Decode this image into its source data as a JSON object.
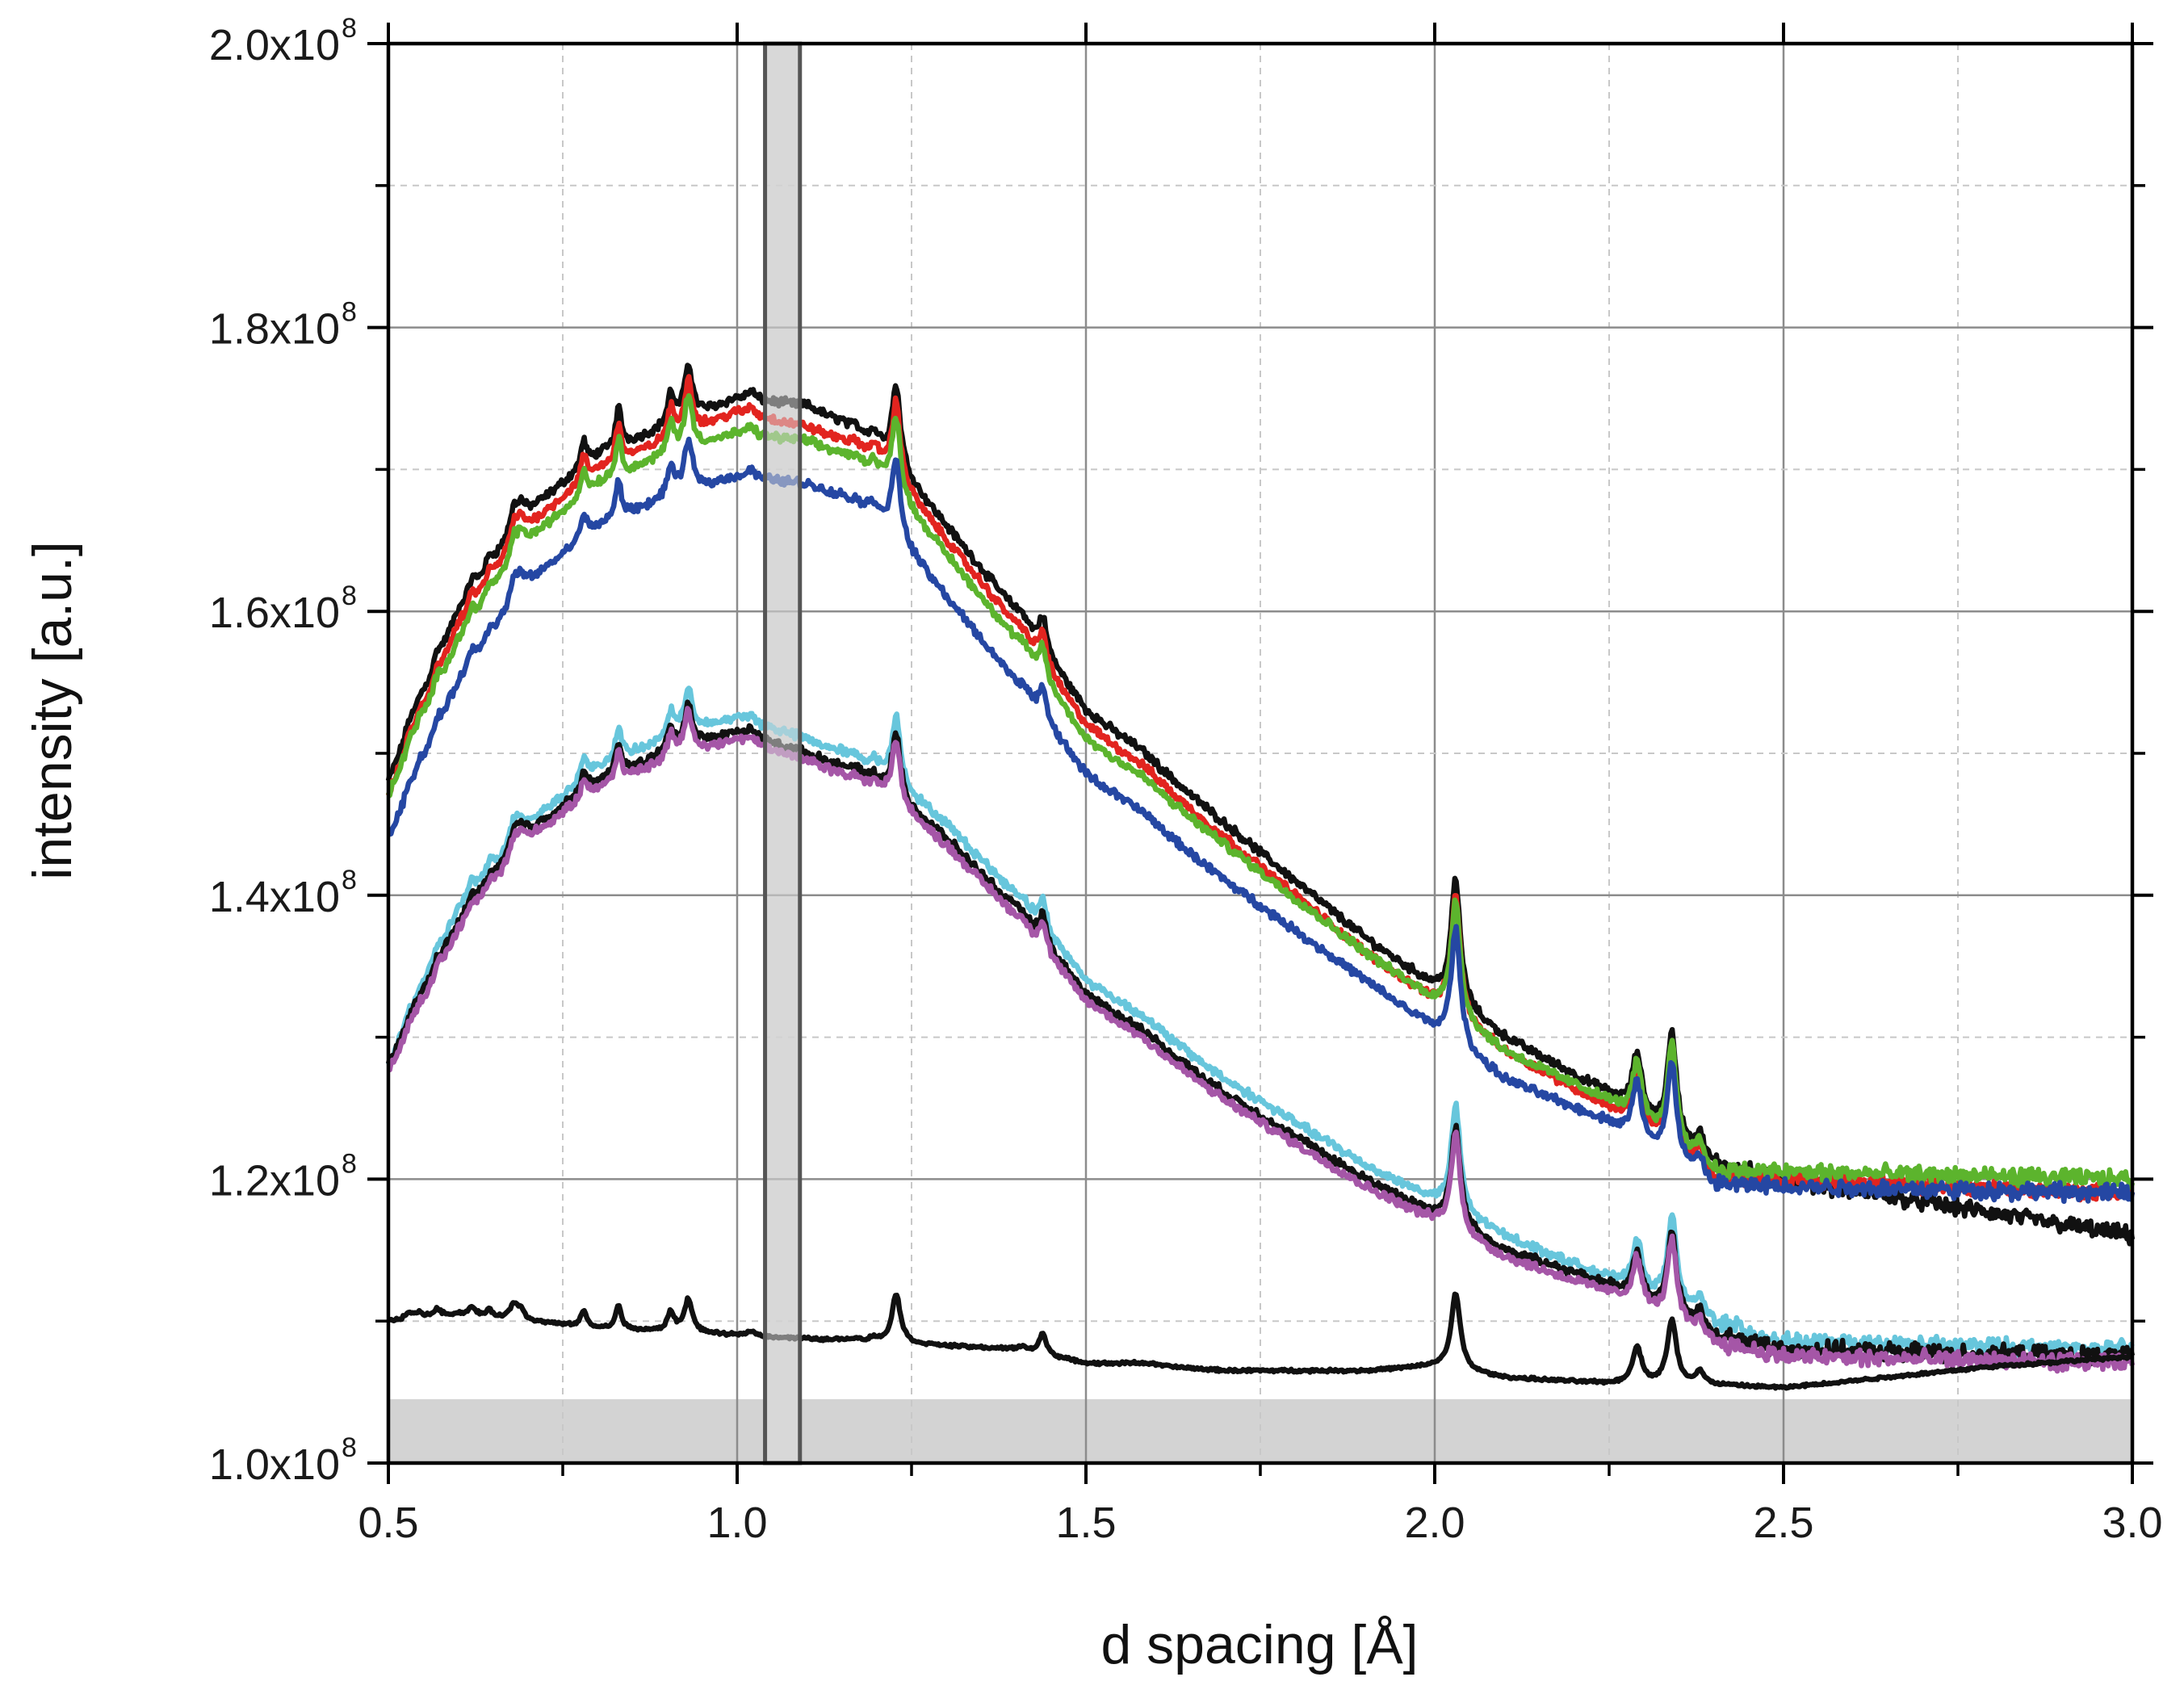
{
  "chart_data": {
    "type": "line",
    "title": "",
    "xlabel": "d spacing [Å]",
    "ylabel": "intensity [a.u.]",
    "xlim": [
      0.5,
      3.0
    ],
    "ylim": [
      100000000,
      200000000
    ],
    "x_ticks": [
      0.5,
      1.0,
      1.5,
      2.0,
      2.5,
      3.0
    ],
    "x_tick_labels": [
      "0.5",
      "1.0",
      "1.5",
      "2.0",
      "2.5",
      "3.0"
    ],
    "y_ticks": [
      100000000,
      120000000,
      140000000,
      160000000,
      180000000,
      200000000
    ],
    "y_tick_labels": [
      {
        "mantissa": "1.0x10",
        "exp": "8"
      },
      {
        "mantissa": "1.2x10",
        "exp": "8"
      },
      {
        "mantissa": "1.4x10",
        "exp": "8"
      },
      {
        "mantissa": "1.6x10",
        "exp": "8"
      },
      {
        "mantissa": "1.8x10",
        "exp": "8"
      },
      {
        "mantissa": "2.0x10",
        "exp": "8"
      }
    ],
    "grid": true,
    "shaded_region": {
      "x": [
        1.04,
        1.09
      ],
      "color": "#d8d8d8"
    },
    "baseline_fill": {
      "y": 104500000,
      "color": "#d3d3d3"
    },
    "peaks": [
      {
        "d": 0.53,
        "h": 0.04,
        "w": 0.006
      },
      {
        "d": 0.545,
        "h": 0.03,
        "w": 0.006
      },
      {
        "d": 0.57,
        "h": 0.045,
        "w": 0.006
      },
      {
        "d": 0.62,
        "h": 0.05,
        "w": 0.006
      },
      {
        "d": 0.645,
        "h": 0.04,
        "w": 0.006
      },
      {
        "d": 0.68,
        "h": 0.09,
        "w": 0.007
      },
      {
        "d": 0.69,
        "h": 0.06,
        "w": 0.006
      },
      {
        "d": 0.78,
        "h": 0.1,
        "w": 0.005
      },
      {
        "d": 0.83,
        "h": 0.15,
        "w": 0.005
      },
      {
        "d": 0.905,
        "h": 0.12,
        "w": 0.006
      },
      {
        "d": 0.93,
        "h": 0.21,
        "w": 0.007
      },
      {
        "d": 1.02,
        "h": 0.035,
        "w": 0.006
      },
      {
        "d": 1.15,
        "h": 0.012,
        "w": 0.005
      },
      {
        "d": 1.17,
        "h": 0.02,
        "w": 0.005
      },
      {
        "d": 1.195,
        "h": 0.028,
        "w": 0.006
      },
      {
        "d": 1.228,
        "h": 0.31,
        "w": 0.0075
      },
      {
        "d": 1.41,
        "h": 0.028,
        "w": 0.006
      },
      {
        "d": 1.438,
        "h": 0.13,
        "w": 0.0065
      },
      {
        "d": 1.58,
        "h": 0.023,
        "w": 0.035
      },
      {
        "d": 2.03,
        "h": 0.48,
        "w": 0.008
      },
      {
        "d": 2.29,
        "h": 0.23,
        "w": 0.008
      },
      {
        "d": 2.34,
        "h": 0.4,
        "w": 0.008
      },
      {
        "d": 2.38,
        "h": 0.08,
        "w": 0.007
      }
    ],
    "series": [
      {
        "name": "upper black",
        "color": "#111111",
        "group": "top",
        "offset": 3,
        "peak_scale": 1.0,
        "baseline": [
          [
            0.5,
            148
          ],
          [
            0.6,
            160
          ],
          [
            0.7,
            167
          ],
          [
            0.8,
            171
          ],
          [
            0.9,
            173
          ],
          [
            1.0,
            175
          ],
          [
            1.1,
            174.5
          ],
          [
            1.2,
            172
          ],
          [
            1.3,
            166
          ],
          [
            1.4,
            160
          ],
          [
            1.5,
            153
          ],
          [
            1.7,
            145
          ],
          [
            1.9,
            137
          ],
          [
            2.1,
            130
          ],
          [
            2.25,
            126
          ],
          [
            2.4,
            121
          ],
          [
            2.5,
            120
          ],
          [
            3.0,
            116
          ]
        ]
      },
      {
        "name": "upper red",
        "color": "#e2241f",
        "group": "top",
        "offset": 2,
        "peak_scale": 0.97,
        "baseline": [
          [
            0.5,
            147
          ],
          [
            0.6,
            159
          ],
          [
            0.7,
            166
          ],
          [
            0.8,
            170
          ],
          [
            0.9,
            172
          ],
          [
            1.0,
            174
          ],
          [
            1.1,
            173
          ],
          [
            1.2,
            171
          ],
          [
            1.3,
            165
          ],
          [
            1.4,
            159
          ],
          [
            1.5,
            152
          ],
          [
            1.7,
            144
          ],
          [
            1.9,
            136
          ],
          [
            2.1,
            129
          ],
          [
            2.25,
            125
          ],
          [
            2.4,
            120
          ],
          [
            2.5,
            120
          ],
          [
            3.0,
            119
          ]
        ]
      },
      {
        "name": "upper green",
        "color": "#5cb42d",
        "group": "top",
        "offset": 1,
        "peak_scale": 0.96,
        "baseline": [
          [
            0.5,
            147
          ],
          [
            0.6,
            158
          ],
          [
            0.7,
            165
          ],
          [
            0.8,
            169
          ],
          [
            0.9,
            171
          ],
          [
            1.0,
            172.5
          ],
          [
            1.1,
            172
          ],
          [
            1.2,
            170
          ],
          [
            1.3,
            164
          ],
          [
            1.4,
            158
          ],
          [
            1.5,
            151
          ],
          [
            1.7,
            143.5
          ],
          [
            1.9,
            136
          ],
          [
            2.1,
            129
          ],
          [
            2.25,
            125.5
          ],
          [
            2.4,
            120.5
          ],
          [
            2.5,
            120.5
          ],
          [
            3.0,
            120
          ]
        ]
      },
      {
        "name": "upper blue",
        "color": "#2547a3",
        "group": "top",
        "offset": 0,
        "peak_scale": 0.95,
        "baseline": [
          [
            0.5,
            144
          ],
          [
            0.6,
            155
          ],
          [
            0.7,
            162
          ],
          [
            0.8,
            166
          ],
          [
            0.9,
            168
          ],
          [
            1.0,
            169.5
          ],
          [
            1.1,
            169
          ],
          [
            1.2,
            167
          ],
          [
            1.3,
            161
          ],
          [
            1.4,
            155
          ],
          [
            1.5,
            148.5
          ],
          [
            1.7,
            141
          ],
          [
            1.9,
            134
          ],
          [
            2.1,
            127
          ],
          [
            2.25,
            124
          ],
          [
            2.4,
            119.5
          ],
          [
            2.5,
            119.5
          ],
          [
            3.0,
            119
          ]
        ]
      },
      {
        "name": "middle cyan",
        "color": "#67c6dc",
        "group": "mid",
        "offset": 2,
        "peak_scale": 0.85,
        "baseline": [
          [
            0.5,
            128
          ],
          [
            0.6,
            139
          ],
          [
            0.7,
            145
          ],
          [
            0.8,
            149
          ],
          [
            0.9,
            151
          ],
          [
            1.0,
            152.5
          ],
          [
            1.1,
            151
          ],
          [
            1.2,
            149
          ],
          [
            1.3,
            145
          ],
          [
            1.4,
            140
          ],
          [
            1.5,
            134
          ],
          [
            1.7,
            127
          ],
          [
            1.9,
            121
          ],
          [
            2.1,
            116
          ],
          [
            2.25,
            113
          ],
          [
            2.4,
            110
          ],
          [
            2.5,
            108.5
          ],
          [
            3.0,
            108
          ]
        ]
      },
      {
        "name": "middle black",
        "color": "#111111",
        "group": "mid",
        "offset": 1,
        "peak_scale": 0.8,
        "baseline": [
          [
            0.5,
            128
          ],
          [
            0.6,
            138
          ],
          [
            0.7,
            144.5
          ],
          [
            0.8,
            148
          ],
          [
            0.9,
            150
          ],
          [
            1.0,
            151.5
          ],
          [
            1.1,
            150
          ],
          [
            1.2,
            148
          ],
          [
            1.3,
            144
          ],
          [
            1.4,
            139
          ],
          [
            1.5,
            133
          ],
          [
            1.7,
            126
          ],
          [
            1.9,
            120
          ],
          [
            2.1,
            115
          ],
          [
            2.25,
            112.5
          ],
          [
            2.4,
            109
          ],
          [
            2.5,
            108
          ],
          [
            3.0,
            107.5
          ]
        ]
      },
      {
        "name": "middle magenta",
        "color": "#a556a7",
        "group": "mid",
        "offset": 0,
        "peak_scale": 0.8,
        "baseline": [
          [
            0.5,
            127.5
          ],
          [
            0.6,
            137.5
          ],
          [
            0.7,
            144
          ],
          [
            0.8,
            147.5
          ],
          [
            0.9,
            149.5
          ],
          [
            1.0,
            151
          ],
          [
            1.1,
            149.5
          ],
          [
            1.2,
            147.5
          ],
          [
            1.3,
            143.5
          ],
          [
            1.4,
            138.5
          ],
          [
            1.5,
            132.5
          ],
          [
            1.7,
            125.5
          ],
          [
            1.9,
            119.5
          ],
          [
            2.1,
            114.5
          ],
          [
            2.25,
            112
          ],
          [
            2.4,
            108.5
          ],
          [
            2.5,
            107.5
          ],
          [
            3.0,
            107
          ]
        ]
      },
      {
        "name": "bottom black",
        "color": "#111111",
        "group": "bottom",
        "offset": 0,
        "peak_scale": 0.62,
        "baseline": [
          [
            0.5,
            110
          ],
          [
            0.6,
            110.5
          ],
          [
            0.8,
            109.5
          ],
          [
            1.0,
            109
          ],
          [
            1.2,
            108.5
          ],
          [
            1.4,
            108
          ],
          [
            1.5,
            107
          ],
          [
            1.7,
            106.5
          ],
          [
            1.9,
            106.5
          ],
          [
            2.0,
            106.8
          ],
          [
            2.1,
            106
          ],
          [
            2.25,
            105.6
          ],
          [
            2.4,
            105.5
          ],
          [
            2.5,
            105.3
          ],
          [
            2.6,
            105.8
          ],
          [
            2.8,
            106.8
          ],
          [
            3.0,
            107.5
          ]
        ]
      }
    ]
  }
}
